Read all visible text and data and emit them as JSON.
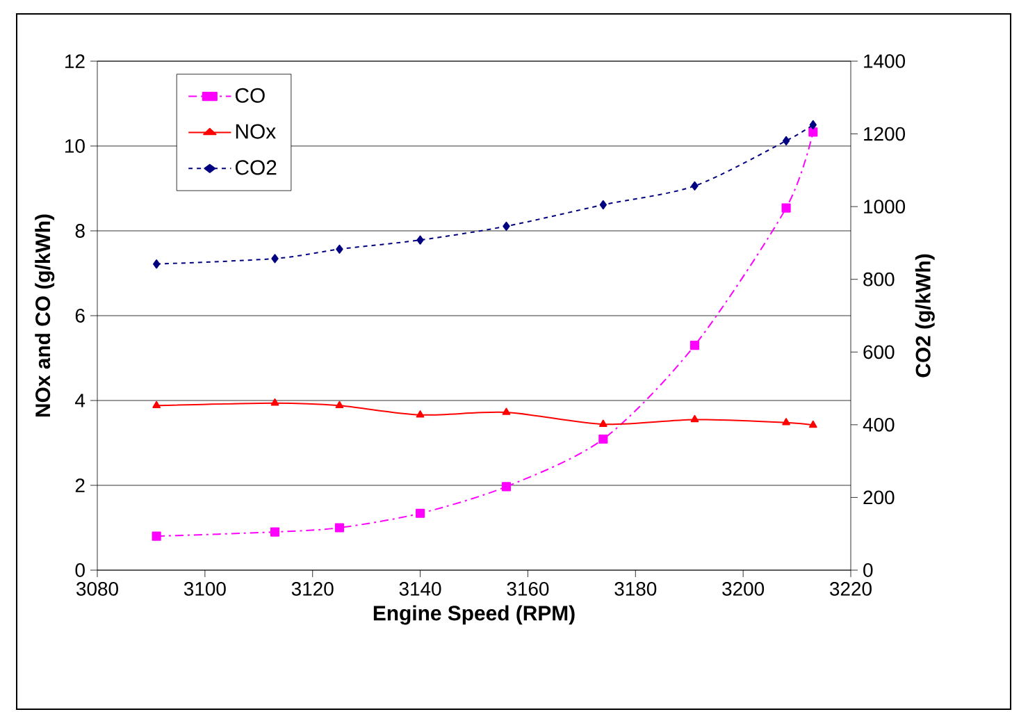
{
  "chart_data": {
    "type": "line",
    "xlabel": "Engine Speed (RPM)",
    "ylabel": "NOx and CO (g/kWh)",
    "y2label": "CO2 (g/kWh)",
    "x": [
      3091,
      3113,
      3125,
      3140,
      3156,
      3174,
      3191,
      3208,
      3213
    ],
    "series": [
      {
        "name": "CO",
        "color": "#ff00ff",
        "marker": "square",
        "line_style": "dashed",
        "values": [
          0.8,
          0.9,
          1.0,
          1.34,
          1.97,
          3.09,
          5.3,
          8.54,
          10.33
        ]
      },
      {
        "name": "NOx",
        "color": "#ff0000",
        "marker": "triangle",
        "line_style": "solid",
        "values": [
          3.88,
          3.94,
          3.88,
          3.66,
          3.72,
          3.44,
          3.55,
          3.48,
          3.42
        ]
      },
      {
        "name": "CO2",
        "color": "#000080",
        "marker": "diamond",
        "line_style": "dotted",
        "axis": "y2",
        "values": [
          842,
          857,
          883,
          908,
          946,
          1005,
          1057,
          1181,
          1225
        ]
      }
    ],
    "xlim": [
      3080,
      3220
    ],
    "xticks": [
      3080,
      3100,
      3120,
      3140,
      3160,
      3180,
      3200,
      3220
    ],
    "ylim": [
      0,
      12
    ],
    "yticks": [
      0,
      2,
      4,
      6,
      8,
      10,
      12
    ],
    "y2lim": [
      0,
      1400
    ],
    "y2ticks": [
      0,
      200,
      400,
      600,
      800,
      1000,
      1200,
      1400
    ],
    "grid": "y",
    "legend": "top left"
  }
}
